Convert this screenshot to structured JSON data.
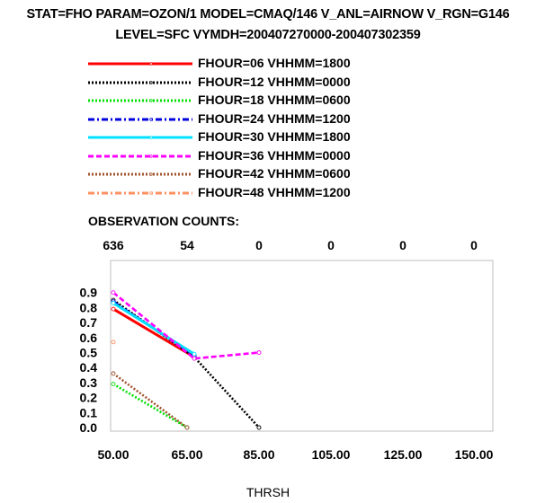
{
  "header": {
    "line1": "STAT=FHO PARAM=OZON/1 MODEL=CMAQ/146 V_ANL=AIRNOW V_RGN=G146",
    "line2": "LEVEL=SFC VYMDH=200407270000-200407302359"
  },
  "observation_counts_label": "OBSERVATION COUNTS:",
  "chart_data": {
    "type": "line",
    "title": "STAT=FHO PARAM=OZON/1 MODEL=CMAQ/146 V_ANL=AIRNOW V_RGN=G146 LEVEL=SFC VYMDH=200407270000-200407302359",
    "xlabel": "THRSH",
    "ylabel": "",
    "x_ticks": [
      50,
      65,
      85,
      105,
      125,
      150
    ],
    "x_tick_labels": [
      "50.00",
      "65.00",
      "85.00",
      "105.00",
      "125.00",
      "150.00"
    ],
    "y_ticks": [
      0.0,
      0.1,
      0.2,
      0.3,
      0.4,
      0.5,
      0.6,
      0.7,
      0.8,
      0.9
    ],
    "y_tick_labels": [
      "0.0",
      "0.1",
      "0.2",
      "0.3",
      "0.4",
      "0.5",
      "0.6",
      "0.7",
      "0.8",
      "0.9"
    ],
    "xlim": [
      50,
      150
    ],
    "ylim": [
      0,
      1.0
    ],
    "grid": false,
    "legend_position": "top",
    "observation_counts": [
      "636",
      "54",
      "0",
      "0",
      "0",
      "0"
    ],
    "series": [
      {
        "name": "FHOUR=06 VHHMM=1800",
        "color": "#ff0000",
        "style": "solid",
        "x": [
          50,
          67
        ],
        "y": [
          0.79,
          0.47
        ]
      },
      {
        "name": "FHOUR=12 VHHMM=0000",
        "color": "#000000",
        "style": "dotted",
        "x": [
          50,
          67,
          85
        ],
        "y": [
          0.85,
          0.47,
          0.0
        ]
      },
      {
        "name": "FHOUR=18 VHHMM=0600",
        "color": "#00e000",
        "style": "dotted",
        "x": [
          50,
          65
        ],
        "y": [
          0.29,
          0.0
        ]
      },
      {
        "name": "FHOUR=24 VHHMM=1200",
        "color": "#0000e0",
        "style": "dashdot",
        "x": [
          50,
          67
        ],
        "y": [
          0.84,
          0.48
        ]
      },
      {
        "name": "FHOUR=30 VHHMM=1800",
        "color": "#00e0ff",
        "style": "solid",
        "x": [
          50,
          67
        ],
        "y": [
          0.83,
          0.49
        ]
      },
      {
        "name": "FHOUR=36 VHHMM=0000",
        "color": "#ff00ff",
        "style": "dashed",
        "x": [
          50,
          67,
          85
        ],
        "y": [
          0.9,
          0.46,
          0.5
        ]
      },
      {
        "name": "FHOUR=42 VHHMM=0600",
        "color": "#a0522d",
        "style": "dotted",
        "x": [
          50,
          65
        ],
        "y": [
          0.36,
          0.0
        ]
      },
      {
        "name": "FHOUR=48 VHHMM=1200",
        "color": "#ff9060",
        "style": "dashdot",
        "x": [
          50
        ],
        "y": [
          0.57
        ]
      }
    ]
  }
}
